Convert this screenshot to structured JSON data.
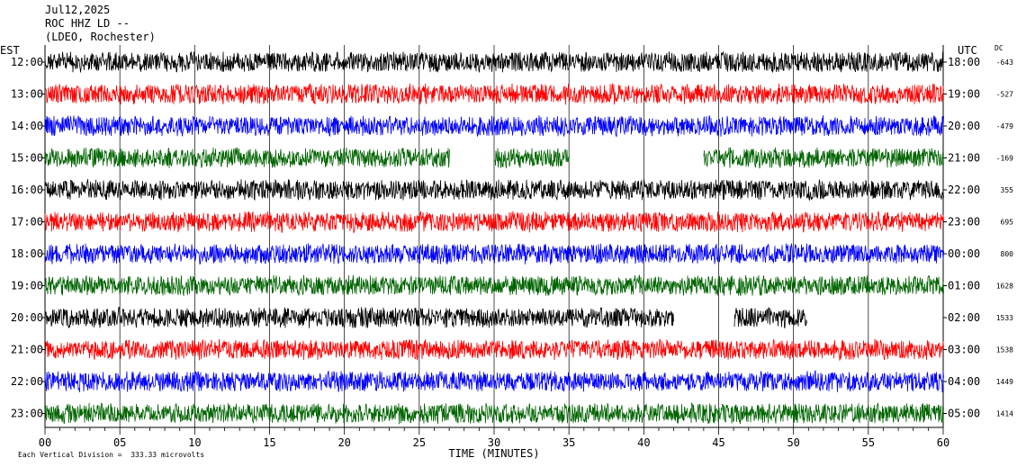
{
  "header": {
    "date": "Jul12,2025",
    "station": "ROC HHZ LD --",
    "network": "(LDEO, Rochester)"
  },
  "left_axis_title": "EST",
  "right_axis_title": "UTC",
  "dc_title": "DC",
  "footer_note": "Each Vertical Division =  333.33 microvolts",
  "colors": {
    "black": "#000000",
    "red": "#ff0000",
    "blue": "#0000ff",
    "green": "#006400"
  },
  "chart_data": {
    "type": "line",
    "title": "ROC HHZ LD --",
    "xlabel": "TIME (MINUTES)",
    "ylabel": "",
    "xlim": [
      0,
      60
    ],
    "x_ticks": [
      "00",
      "05",
      "10",
      "15",
      "20",
      "25",
      "30",
      "35",
      "40",
      "45",
      "50",
      "55",
      "60"
    ],
    "rows": [
      {
        "est": "12:00",
        "utc": "18:00",
        "dc": "-643",
        "color": "black"
      },
      {
        "est": "13:00",
        "utc": "19:00",
        "dc": "-527",
        "color": "red"
      },
      {
        "est": "14:00",
        "utc": "20:00",
        "dc": "-479",
        "color": "blue"
      },
      {
        "est": "15:00",
        "utc": "21:00",
        "dc": "-169",
        "color": "green",
        "gaps": [
          [
            27.0,
            30.0
          ],
          [
            35.0,
            44.0
          ]
        ]
      },
      {
        "est": "16:00",
        "utc": "22:00",
        "dc": "355",
        "color": "black"
      },
      {
        "est": "17:00",
        "utc": "23:00",
        "dc": "695",
        "color": "red"
      },
      {
        "est": "18:00",
        "utc": "00:00",
        "dc": "800",
        "color": "blue"
      },
      {
        "est": "19:00",
        "utc": "01:00",
        "dc": "1628",
        "color": "green"
      },
      {
        "est": "20:00",
        "utc": "02:00",
        "dc": "1533",
        "color": "black",
        "gaps": [
          [
            42.0,
            46.0
          ],
          [
            50.9,
            60.0
          ]
        ]
      },
      {
        "est": "21:00",
        "utc": "03:00",
        "dc": "1538",
        "color": "red"
      },
      {
        "est": "22:00",
        "utc": "04:00",
        "dc": "1449",
        "color": "blue"
      },
      {
        "est": "23:00",
        "utc": "05:00",
        "dc": "1414",
        "color": "green"
      }
    ]
  }
}
